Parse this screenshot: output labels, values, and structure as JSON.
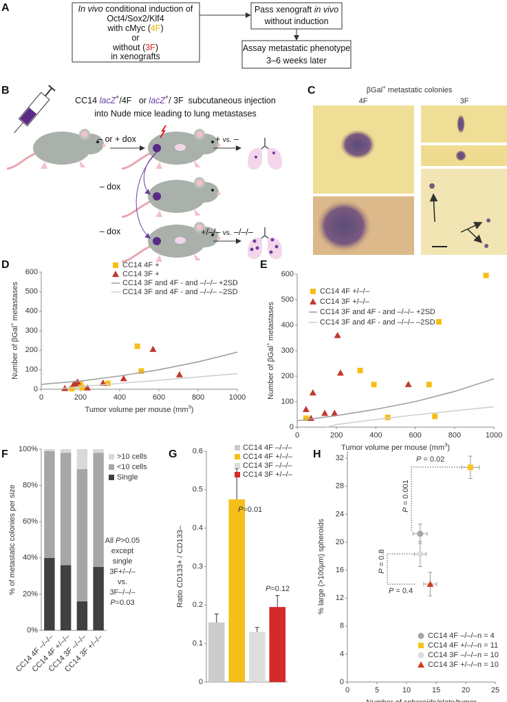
{
  "panel_labels": [
    "A",
    "B",
    "C",
    "D",
    "E",
    "F",
    "G",
    "H"
  ],
  "panel_a": {
    "box1": [
      [
        {
          "italic": "In vivo"
        },
        " conditional induction of"
      ],
      [
        "Oct4/Sox2/Klf4"
      ],
      [
        "with cMyc (",
        {
          "text": "4F",
          "color": "#f0b400"
        },
        ")"
      ],
      [
        "or"
      ],
      [
        "without (",
        {
          "text": "3F",
          "color": "#d62728"
        },
        ")"
      ],
      [
        "in xenografts"
      ]
    ],
    "box2": [
      [
        "Pass xenograft ",
        {
          "italic": "in vivo"
        }
      ],
      [
        "without induction"
      ]
    ],
    "box3": [
      [
        "Assay metastatic phenotype"
      ],
      [
        "3–6 weeks later"
      ]
    ]
  },
  "panel_b": {
    "title": [
      [
        "CC14 ",
        {
          "text": "lacZ",
          "color": "#6b3fa0",
          "italic": true
        },
        {
          "sup": "+"
        },
        "/4F   or ",
        {
          "text": "lacZ",
          "color": "#6b3fa0",
          "italic": true
        },
        {
          "sup": "+"
        },
        "/ 3F  subcutaneous injection"
      ],
      [
        "into Nude mice leading to lung metastases"
      ]
    ],
    "labels": [
      [
        "– or + dox"
      ],
      [
        "+ ",
        {
          "small": "vs."
        },
        " –"
      ],
      [
        "– dox"
      ],
      [
        "– dox"
      ],
      [
        "+/–/– ",
        {
          "small": "vs."
        },
        " –/–/–"
      ]
    ]
  },
  "panel_c": {
    "title": [
      "βGal",
      {
        "sup": "+"
      },
      " metastatic colonies"
    ],
    "columns": [
      "4F",
      "3F"
    ]
  },
  "chart_data": [
    {
      "type": "scatter",
      "x_label": [
        "Tumor volume per mouse (mm",
        {
          "sup": "3"
        },
        ")"
      ],
      "y_label": [
        "Number of βGal",
        {
          "sup": "+"
        },
        " metastases"
      ],
      "xlim": [
        0,
        1000
      ],
      "xticks": [
        0,
        200,
        400,
        600,
        800,
        1000
      ],
      "ylim": [
        0,
        600
      ],
      "yticks": [
        0,
        100,
        200,
        300,
        400,
        500,
        600
      ],
      "series": [
        {
          "name": "CC14 4F +",
          "color": "#f7be16",
          "marker": "square",
          "x": [
            155,
            185,
            200,
            210,
            340,
            490,
            510
          ],
          "values": [
            3,
            20,
            25,
            8,
            30,
            220,
            93
          ]
        },
        {
          "name": "CC14 3F +",
          "color": "#c0392b",
          "marker": "triangle",
          "x": [
            120,
            165,
            175,
            185,
            235,
            315,
            420,
            570,
            705
          ],
          "values": [
            5,
            25,
            30,
            38,
            8,
            32,
            55,
            205,
            75
          ]
        },
        {
          "name": "CC14 3F and 4F - and –/–/– +2SD",
          "color": "#a0a0a0",
          "marker": "line",
          "x": [
            0,
            200,
            400,
            600,
            800,
            1000
          ],
          "values": [
            25,
            42,
            68,
            100,
            140,
            190
          ]
        },
        {
          "name": "CC14 3F and 4F - and –/–/– –2SD",
          "color": "#d0d0d0",
          "marker": "line",
          "x": [
            100,
            200,
            400,
            600,
            800,
            1000
          ],
          "values": [
            3,
            14,
            30,
            46,
            63,
            80
          ]
        }
      ]
    },
    {
      "type": "scatter",
      "x_label": [
        "Tumor volume per mouse (mm",
        {
          "sup": "3"
        },
        ")"
      ],
      "y_label": [
        "Number of βGal",
        {
          "sup": "+"
        },
        " metastases"
      ],
      "xlim": [
        0,
        1000
      ],
      "xticks": [
        0,
        200,
        400,
        600,
        800,
        1000
      ],
      "ylim": [
        0,
        600
      ],
      "yticks": [
        0,
        100,
        200,
        300,
        400,
        500,
        600
      ],
      "series": [
        {
          "name": "CC14 4F +/–/–",
          "color": "#f7be16",
          "marker": "square",
          "x": [
            45,
            320,
            390,
            460,
            670,
            700,
            720,
            960
          ],
          "values": [
            35,
            222,
            167,
            38,
            167,
            42,
            413,
            595
          ]
        },
        {
          "name": "CC14 3F +/–/–",
          "color": "#c0392b",
          "marker": "triangle",
          "x": [
            45,
            70,
            80,
            140,
            190,
            205,
            220,
            565
          ],
          "values": [
            70,
            35,
            135,
            55,
            55,
            360,
            213,
            168
          ]
        },
        {
          "name": "CC14 3F and 4F - and –/–/– +2SD",
          "color": "#a0a0a0",
          "marker": "line",
          "x": [
            0,
            200,
            400,
            600,
            800,
            1000
          ],
          "values": [
            25,
            45,
            70,
            100,
            140,
            190
          ]
        },
        {
          "name": "CC14 3F and 4F - and –/–/– –2SD",
          "color": "#d0d0d0",
          "marker": "line",
          "x": [
            150,
            200,
            400,
            600,
            800,
            1000
          ],
          "values": [
            0,
            10,
            30,
            48,
            64,
            80
          ]
        }
      ]
    },
    {
      "type": "stacked_bar",
      "categories": [
        "CC14 4F –/–/–",
        "CC14 4F +/–/–",
        "CC14 3F –/–/–",
        "CC14 3F +/–/–"
      ],
      "y_label": [
        "% of metastatic colonies per size"
      ],
      "ylim": [
        0,
        100
      ],
      "yticks": [
        {
          "value": 0,
          "label": "0%"
        },
        {
          "value": 20,
          "label": "20%"
        },
        {
          "value": 40,
          "label": "40%"
        },
        {
          "value": 60,
          "label": "60%"
        },
        {
          "value": 80,
          "label": "80%"
        },
        {
          "value": 100,
          "label": "100%"
        }
      ],
      "series": [
        {
          "name": "Single",
          "color": "#404040",
          "values": [
            40,
            36,
            16,
            35
          ]
        },
        {
          "name": "<10 cells",
          "color": "#a6a6a6",
          "values": [
            59,
            62,
            73,
            63
          ]
        },
        {
          "name": ">10 cells",
          "color": "#d9d9d9",
          "values": [
            1,
            2,
            11,
            2
          ]
        }
      ],
      "annotations": [
        {
          "text": [
            "All ",
            {
              "italic": "P"
            },
            ">0.05"
          ]
        },
        {
          "text": [
            "except"
          ]
        },
        {
          "text": [
            "single"
          ]
        },
        {
          "text": [
            "3F+/–/–"
          ]
        },
        {
          "text": [
            "vs."
          ]
        },
        {
          "text": [
            "3F–/–/–"
          ]
        },
        {
          "text": [
            {
              "italic": "P"
            },
            "=0.03"
          ],
          "color": "#d62728"
        }
      ]
    },
    {
      "type": "bar",
      "y_label": [
        "Ratio CD133+ / CD133–"
      ],
      "ylim": [
        0,
        0.6
      ],
      "yticks": [
        0,
        0.1,
        0.2,
        0.3,
        0.4,
        0.5,
        0.6
      ],
      "series": [
        {
          "name": "CC14 4F –/–/–",
          "color": "#cccccc",
          "values": [
            0.155
          ],
          "errors": [
            0.022
          ]
        },
        {
          "name": "CC14 4F +/–/–",
          "color": "#f5bf1a",
          "values": [
            0.475
          ],
          "errors": [
            0.08
          ]
        },
        {
          "name": "CC14 3F –/–/–",
          "color": "#dddddd",
          "values": [
            0.13
          ],
          "errors": [
            0.012
          ]
        },
        {
          "name": "CC14 3F +/–/–",
          "color": "#d42a2a",
          "values": [
            0.195
          ],
          "errors": [
            0.03
          ]
        }
      ],
      "annotations": [
        {
          "text": [
            {
              "italic": "P"
            },
            "=0.01"
          ],
          "color": "#f5bf1a"
        },
        {
          "text": [
            {
              "italic": "P"
            },
            "=0.12"
          ],
          "color": "#d42a2a"
        }
      ]
    },
    {
      "type": "scatter",
      "x_label": [
        "Number of spheroids/plate/tumor"
      ],
      "y_label": [
        "% large (>100",
        {
          "italic": "µ"
        },
        "m) spheroids"
      ],
      "xlim": [
        0,
        25
      ],
      "xticks": [
        0,
        5,
        10,
        15,
        20,
        25
      ],
      "ylim": [
        0,
        33
      ],
      "yticks": [
        0,
        4,
        8,
        12,
        16,
        20,
        24,
        28,
        32
      ],
      "series": [
        {
          "name": "CC14 4F –/–/–",
          "n": "n = 4",
          "color": "#a6a6a6",
          "marker": "circle",
          "x": [
            12.3
          ],
          "values": [
            21.2
          ],
          "xerr": [
            1.2
          ],
          "yerr": [
            1.4
          ]
        },
        {
          "name": "CC14 4F +/–/–",
          "n": "n = 11",
          "color": "#f5c518",
          "marker": "square",
          "x": [
            20.8
          ],
          "values": [
            30.7
          ],
          "xerr": [
            1.5
          ],
          "yerr": [
            1.6
          ]
        },
        {
          "name": "CC14 3F –/–/–",
          "n": "n = 10",
          "color": "#dcdcdc",
          "marker": "circle",
          "x": [
            12.3
          ],
          "values": [
            18.3
          ],
          "xerr": [
            1.0
          ],
          "yerr": [
            1.8
          ]
        },
        {
          "name": "CC14 3F +/–/–",
          "n": "n = 10",
          "color": "#d23c1e",
          "marker": "triangle",
          "x": [
            14.0
          ],
          "values": [
            14.0
          ],
          "xerr": [
            1.1
          ],
          "yerr": [
            1.7
          ]
        }
      ],
      "annotations": [
        {
          "text": [
            {
              "italic": "P"
            },
            " = 0.02"
          ],
          "color": "#f5c518"
        },
        {
          "text": [
            {
              "italic": "P"
            },
            " = 0.001"
          ],
          "color": "#f5c518"
        },
        {
          "text": [
            {
              "italic": "P"
            },
            " = 0.8"
          ],
          "color": "#d23c1e"
        },
        {
          "text": [
            {
              "italic": "P"
            },
            " = 0.4"
          ],
          "color": "#d23c1e"
        }
      ]
    }
  ]
}
